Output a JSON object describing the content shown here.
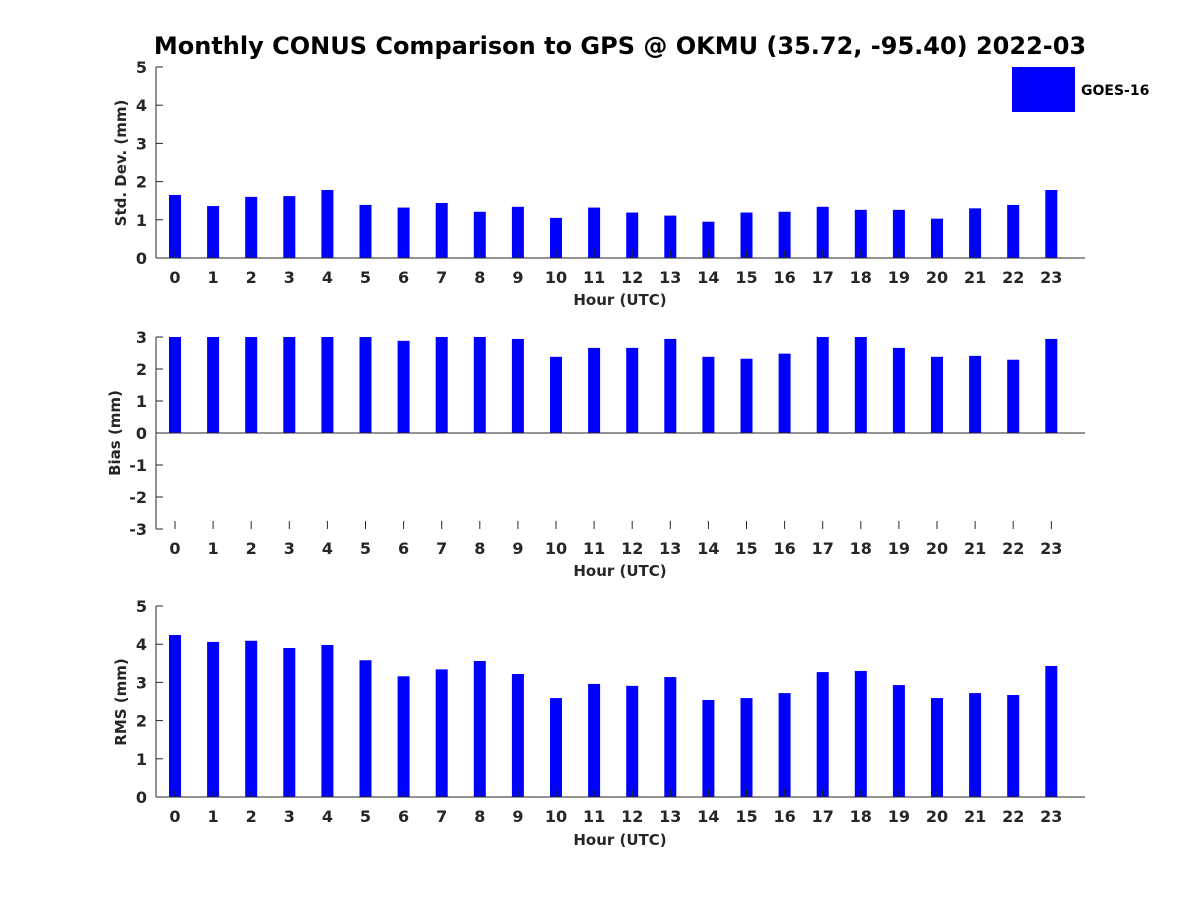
{
  "chart_data": [
    {
      "type": "bar",
      "title": "Monthly CONUS Comparison to GPS @ OKMU (35.72, -95.40) 2022-03",
      "xlabel": "Hour (UTC)",
      "ylabel": "Std. Dev. (mm)",
      "ylim": [
        0,
        5
      ],
      "yticks": [
        0,
        1,
        2,
        3,
        4,
        5
      ],
      "categories": [
        "0",
        "1",
        "2",
        "3",
        "4",
        "5",
        "6",
        "7",
        "8",
        "9",
        "10",
        "11",
        "12",
        "13",
        "14",
        "15",
        "16",
        "17",
        "18",
        "19",
        "20",
        "21",
        "22",
        "23"
      ],
      "series": [
        {
          "name": "GOES-16",
          "values": [
            1.65,
            1.36,
            1.6,
            1.62,
            1.78,
            1.39,
            1.32,
            1.44,
            1.21,
            1.34,
            1.05,
            1.32,
            1.19,
            1.11,
            0.95,
            1.19,
            1.21,
            1.34,
            1.26,
            1.26,
            1.03,
            1.3,
            1.39,
            1.78
          ]
        }
      ],
      "grid": false,
      "legend": "top-right"
    },
    {
      "type": "bar",
      "xlabel": "Hour (UTC)",
      "ylabel": "Bias (mm)",
      "ylim": [
        -3,
        3
      ],
      "yticks": [
        -3,
        -2,
        -1,
        0,
        1,
        2,
        3
      ],
      "categories": [
        "0",
        "1",
        "2",
        "3",
        "4",
        "5",
        "6",
        "7",
        "8",
        "9",
        "10",
        "11",
        "12",
        "13",
        "14",
        "15",
        "16",
        "17",
        "18",
        "19",
        "20",
        "21",
        "22",
        "23"
      ],
      "series": [
        {
          "name": "GOES-16",
          "values": [
            3.0,
            3.0,
            3.0,
            3.0,
            3.0,
            3.0,
            2.88,
            3.0,
            3.0,
            2.94,
            2.38,
            2.66,
            2.66,
            2.94,
            2.38,
            2.32,
            2.48,
            3.0,
            3.0,
            2.66,
            2.38,
            2.41,
            2.29,
            2.94
          ]
        }
      ],
      "grid": false
    },
    {
      "type": "bar",
      "xlabel": "Hour (UTC)",
      "ylabel": "RMS (mm)",
      "ylim": [
        0,
        5
      ],
      "yticks": [
        0,
        1,
        2,
        3,
        4,
        5
      ],
      "categories": [
        "0",
        "1",
        "2",
        "3",
        "4",
        "5",
        "6",
        "7",
        "8",
        "9",
        "10",
        "11",
        "12",
        "13",
        "14",
        "15",
        "16",
        "17",
        "18",
        "19",
        "20",
        "21",
        "22",
        "23"
      ],
      "series": [
        {
          "name": "GOES-16",
          "values": [
            4.24,
            4.06,
            4.09,
            3.9,
            3.98,
            3.58,
            3.16,
            3.34,
            3.56,
            3.22,
            2.59,
            2.96,
            2.91,
            3.14,
            2.54,
            2.59,
            2.72,
            3.27,
            3.3,
            2.93,
            2.59,
            2.72,
            2.67,
            3.43
          ]
        }
      ],
      "grid": false
    }
  ],
  "legend": {
    "label": "GOES-16"
  },
  "colors": {
    "bar": "#0000ff",
    "axis": "#262626",
    "text": "#000000"
  }
}
